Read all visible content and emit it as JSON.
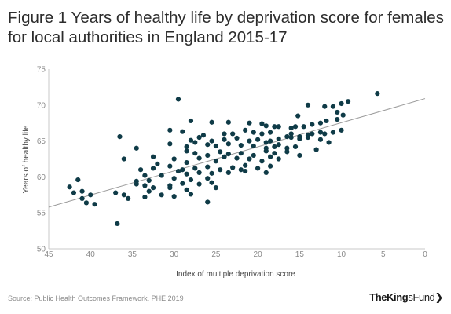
{
  "header": {
    "title": "Figure 1 Years of healthy life by deprivation score for females for local authorities in England 2015-17"
  },
  "footer": {
    "source": "Source: Public Health Outcomes Framework, PHE 2019",
    "logo": {
      "text_main": "TheKing",
      "text_rest": "sFund",
      "chevron": "❯"
    }
  },
  "colors": {
    "points": "#0f3b47",
    "trend": "#9a9a9a",
    "axis": "#c8c8c8"
  },
  "chart_data": {
    "type": "scatter",
    "xlabel": "Index of multiple deprivation score",
    "ylabel": "Years of healthy life",
    "xlim": [
      45,
      0
    ],
    "ylim": [
      50,
      75
    ],
    "xticks": [
      45,
      40,
      35,
      30,
      25,
      20,
      15,
      10,
      5,
      0
    ],
    "yticks": [
      50,
      55,
      60,
      65,
      70,
      75
    ],
    "grid": false,
    "trendline": [
      [
        45,
        55.8
      ],
      [
        0,
        70.9
      ]
    ],
    "points": [
      [
        5.7,
        71.6
      ],
      [
        9.2,
        70.5
      ],
      [
        10.0,
        70.2
      ],
      [
        11.0,
        69.8
      ],
      [
        10.5,
        69.0
      ],
      [
        12.0,
        69.8
      ],
      [
        14.0,
        70.0
      ],
      [
        15.2,
        68.5
      ],
      [
        29.5,
        70.8
      ],
      [
        9.8,
        68.6
      ],
      [
        10.5,
        68.0
      ],
      [
        11.8,
        67.8
      ],
      [
        12.5,
        67.5
      ],
      [
        13.5,
        67.3
      ],
      [
        14.5,
        67.0
      ],
      [
        15.5,
        67.0
      ],
      [
        16.0,
        66.8
      ],
      [
        17.5,
        67.0
      ],
      [
        18.0,
        67.0
      ],
      [
        19.0,
        67.1
      ],
      [
        19.5,
        67.4
      ],
      [
        21.0,
        67.5
      ],
      [
        23.5,
        67.6
      ],
      [
        25.5,
        67.6
      ],
      [
        28.0,
        67.8
      ],
      [
        10.0,
        66.5
      ],
      [
        11.0,
        66.2
      ],
      [
        12.0,
        66.0
      ],
      [
        12.5,
        66.2
      ],
      [
        13.5,
        66.0
      ],
      [
        14.0,
        65.8
      ],
      [
        15.0,
        65.6
      ],
      [
        16.0,
        66.0
      ],
      [
        16.5,
        65.6
      ],
      [
        18.5,
        66.2
      ],
      [
        19.5,
        66.0
      ],
      [
        20.5,
        66.2
      ],
      [
        21.5,
        66.5
      ],
      [
        23.0,
        66.0
      ],
      [
        24.0,
        66.0
      ],
      [
        26.5,
        65.8
      ],
      [
        29.0,
        66.3
      ],
      [
        30.5,
        66.5
      ],
      [
        36.5,
        65.6
      ],
      [
        11.5,
        64.8
      ],
      [
        12.5,
        65.2
      ],
      [
        14.0,
        65.5
      ],
      [
        15.0,
        65.3
      ],
      [
        16.0,
        65.5
      ],
      [
        17.5,
        65.3
      ],
      [
        18.5,
        65.0
      ],
      [
        19.0,
        64.8
      ],
      [
        20.0,
        65.2
      ],
      [
        21.0,
        65.0
      ],
      [
        22.5,
        65.4
      ],
      [
        24.0,
        65.2
      ],
      [
        25.5,
        65.0
      ],
      [
        27.0,
        65.5
      ],
      [
        28.0,
        65.1
      ],
      [
        13.0,
        63.8
      ],
      [
        15.5,
        64.2
      ],
      [
        16.5,
        64.0
      ],
      [
        17.5,
        64.5
      ],
      [
        18.0,
        64.2
      ],
      [
        19.0,
        64.0
      ],
      [
        20.5,
        64.3
      ],
      [
        22.0,
        64.4
      ],
      [
        23.5,
        64.6
      ],
      [
        25.0,
        64.3
      ],
      [
        26.0,
        64.5
      ],
      [
        27.5,
        64.8
      ],
      [
        28.5,
        64.2
      ],
      [
        30.5,
        64.6
      ],
      [
        34.5,
        64.0
      ],
      [
        15.0,
        63.0
      ],
      [
        16.5,
        63.5
      ],
      [
        18.0,
        63.3
      ],
      [
        19.0,
        63.6
      ],
      [
        20.5,
        63.0
      ],
      [
        22.0,
        63.3
      ],
      [
        23.5,
        63.2
      ],
      [
        24.5,
        63.5
      ],
      [
        26.0,
        63.0
      ],
      [
        27.5,
        63.3
      ],
      [
        28.5,
        63.6
      ],
      [
        17.5,
        62.5
      ],
      [
        18.5,
        62.8
      ],
      [
        19.5,
        62.2
      ],
      [
        21.0,
        62.5
      ],
      [
        22.5,
        62.6
      ],
      [
        24.0,
        62.8
      ],
      [
        25.0,
        62.2
      ],
      [
        27.0,
        62.6
      ],
      [
        28.5,
        62.0
      ],
      [
        30.0,
        62.5
      ],
      [
        32.5,
        62.8
      ],
      [
        36.0,
        62.5
      ],
      [
        18.5,
        61.5
      ],
      [
        20.0,
        61.2
      ],
      [
        21.5,
        61.6
      ],
      [
        23.0,
        61.3
      ],
      [
        24.5,
        61.0
      ],
      [
        26.0,
        61.4
      ],
      [
        27.5,
        61.2
      ],
      [
        29.0,
        61.0
      ],
      [
        30.5,
        61.5
      ],
      [
        32.0,
        61.8
      ],
      [
        32.5,
        61.2
      ],
      [
        34.0,
        61.0
      ],
      [
        19.0,
        60.6
      ],
      [
        21.5,
        60.8
      ],
      [
        22.0,
        61.0
      ],
      [
        23.5,
        60.6
      ],
      [
        25.5,
        60.5
      ],
      [
        27.0,
        60.6
      ],
      [
        28.5,
        60.4
      ],
      [
        29.5,
        60.8
      ],
      [
        31.5,
        60.2
      ],
      [
        33.5,
        60.2
      ],
      [
        26.0,
        59.8
      ],
      [
        28.0,
        59.6
      ],
      [
        30.0,
        59.8
      ],
      [
        33.0,
        59.5
      ],
      [
        34.5,
        59.4
      ],
      [
        25.5,
        59.2
      ],
      [
        27.0,
        59.0
      ],
      [
        29.0,
        59.1
      ],
      [
        30.5,
        58.8
      ],
      [
        32.5,
        58.5
      ],
      [
        33.5,
        58.8
      ],
      [
        34.5,
        59.0
      ],
      [
        25.0,
        58.5
      ],
      [
        28.5,
        58.2
      ],
      [
        30.5,
        58.5
      ],
      [
        33.0,
        58.0
      ],
      [
        36.0,
        57.5
      ],
      [
        37.0,
        57.8
      ],
      [
        28.0,
        57.6
      ],
      [
        30.0,
        57.3
      ],
      [
        31.5,
        57.5
      ],
      [
        33.5,
        57.2
      ],
      [
        35.5,
        57.0
      ],
      [
        26.0,
        56.5
      ],
      [
        39.5,
        56.2
      ],
      [
        40.5,
        56.4
      ],
      [
        40.0,
        57.5
      ],
      [
        41.0,
        58.0
      ],
      [
        42.0,
        57.8
      ],
      [
        41.5,
        59.6
      ],
      [
        42.5,
        58.6
      ],
      [
        41.0,
        57.0
      ],
      [
        36.8,
        53.5
      ]
    ]
  }
}
